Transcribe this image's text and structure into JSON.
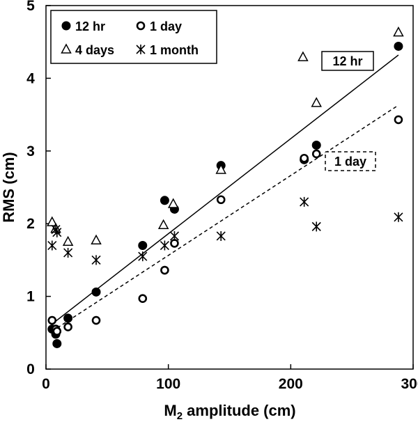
{
  "chart_data": {
    "type": "scatter",
    "xlabel": "M",
    "xlabel_sub": "2",
    "xlabel_rest": " amplitude (cm)",
    "ylabel": "RMS (cm)",
    "xlim": [
      0,
      300
    ],
    "ylim": [
      0,
      5
    ],
    "xticks": [
      0,
      100,
      200,
      300
    ],
    "yticks": [
      0,
      1,
      2,
      3,
      4,
      5
    ],
    "legend_position": "top-left",
    "series": [
      {
        "name": "12 hr",
        "marker": "filled-circle",
        "points": [
          [
            5,
            0.55
          ],
          [
            8,
            0.48
          ],
          [
            9,
            0.35
          ],
          [
            18,
            0.7
          ],
          [
            41,
            1.06
          ],
          [
            79,
            1.7
          ],
          [
            97,
            2.32
          ],
          [
            105,
            2.2
          ],
          [
            143,
            2.8
          ],
          [
            211,
            2.88
          ],
          [
            221,
            3.08
          ],
          [
            288,
            4.44
          ]
        ]
      },
      {
        "name": "1 day",
        "marker": "open-circle",
        "points": [
          [
            5,
            0.67
          ],
          [
            8,
            0.55
          ],
          [
            9,
            0.52
          ],
          [
            18,
            0.58
          ],
          [
            41,
            0.67
          ],
          [
            79,
            0.97
          ],
          [
            97,
            1.36
          ],
          [
            105,
            1.73
          ],
          [
            143,
            2.33
          ],
          [
            211,
            2.9
          ],
          [
            221,
            2.96
          ],
          [
            288,
            3.43
          ]
        ]
      },
      {
        "name": "4 days",
        "marker": "open-triangle",
        "points": [
          [
            5,
            2.02
          ],
          [
            8,
            1.93
          ],
          [
            18,
            1.75
          ],
          [
            41,
            1.77
          ],
          [
            96,
            1.98
          ],
          [
            104,
            2.27
          ],
          [
            143,
            2.74
          ],
          [
            210,
            4.29
          ],
          [
            221,
            3.66
          ],
          [
            288,
            4.63
          ]
        ]
      },
      {
        "name": "1 month",
        "marker": "asterisk",
        "points": [
          [
            5,
            1.7
          ],
          [
            8,
            1.92
          ],
          [
            9,
            1.88
          ],
          [
            18,
            1.6
          ],
          [
            41,
            1.5
          ],
          [
            79,
            1.55
          ],
          [
            97,
            1.7
          ],
          [
            105,
            1.83
          ],
          [
            143,
            1.83
          ],
          [
            211,
            2.3
          ],
          [
            221,
            1.96
          ],
          [
            288,
            2.09
          ]
        ]
      }
    ],
    "fit_lines": [
      {
        "label": "12 hr",
        "style": "solid",
        "x": [
          5,
          288
        ],
        "y": [
          0.62,
          4.32
        ],
        "box": "solid"
      },
      {
        "label": "1 day",
        "style": "dashed",
        "x": [
          5,
          288
        ],
        "y": [
          0.52,
          3.63
        ],
        "box": "dashed"
      }
    ]
  }
}
